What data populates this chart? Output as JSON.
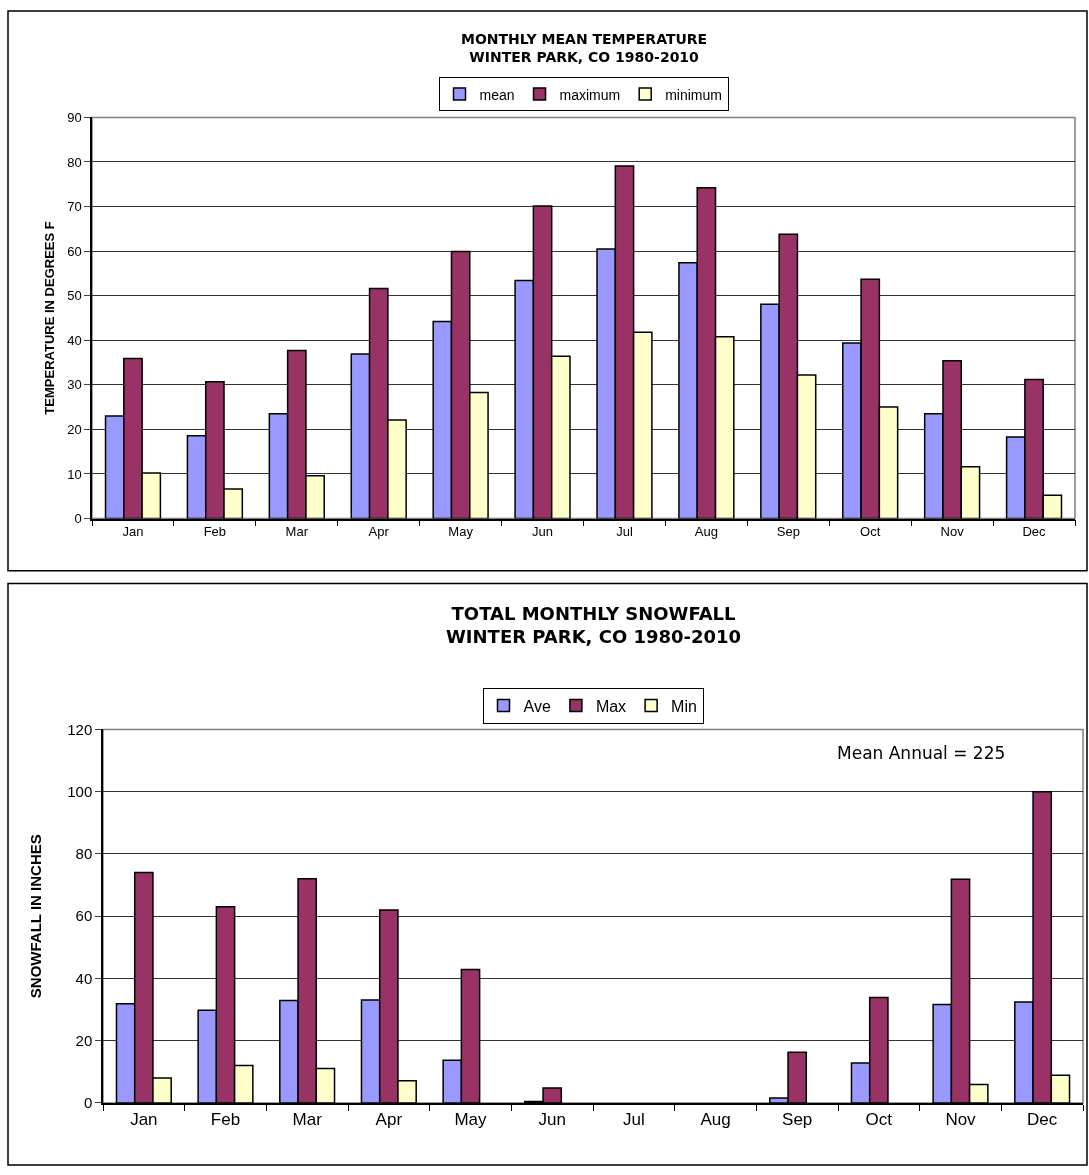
{
  "chart_data": [
    {
      "type": "bar",
      "title": "MONTHLY MEAN TEMPERATURE\nWINTER PARK, CO 1980-2010",
      "ylabel": "TEMPERATURE IN DEGREES F",
      "categories": [
        "Jan",
        "Feb",
        "Mar",
        "Apr",
        "May",
        "Jun",
        "Jul",
        "Aug",
        "Sep",
        "Oct",
        "Nov",
        "Dec"
      ],
      "series": [
        {
          "name": "mean",
          "color": "#9999ff",
          "values": [
            23.0,
            18.6,
            23.5,
            36.9,
            44.2,
            53.4,
            60.5,
            57.4,
            48.1,
            39.4,
            23.5,
            18.3
          ]
        },
        {
          "name": "maximum",
          "color": "#993366",
          "values": [
            35.9,
            30.7,
            37.7,
            51.6,
            59.9,
            70.1,
            79.1,
            74.2,
            63.8,
            53.7,
            35.4,
            31.2
          ]
        },
        {
          "name": "minimum",
          "color": "#ffffcc",
          "values": [
            10.2,
            6.6,
            9.6,
            22.1,
            28.3,
            36.4,
            41.8,
            40.8,
            32.2,
            25.0,
            11.6,
            5.2
          ]
        }
      ],
      "ylim": [
        0,
        90
      ],
      "yticks": [
        0,
        10,
        20,
        30,
        40,
        50,
        60,
        70,
        80,
        90
      ],
      "grid": "y",
      "legend": "top"
    },
    {
      "type": "bar",
      "title": "TOTAL MONTHLY SNOWFALL\nWINTER PARK, CO 1980-2010",
      "ylabel": "SNOWFALL IN INCHES",
      "categories": [
        "Jan",
        "Feb",
        "Mar",
        "Apr",
        "May",
        "Jun",
        "Jul",
        "Aug",
        "Sep",
        "Oct",
        "Nov",
        "Dec"
      ],
      "series": [
        {
          "name": "Ave",
          "color": "#9999ff",
          "values": [
            31.9,
            29.8,
            32.9,
            33.1,
            13.7,
            0.5,
            0,
            0,
            1.6,
            12.8,
            31.6,
            32.4
          ]
        },
        {
          "name": "Max",
          "color": "#993366",
          "values": [
            74,
            63,
            72,
            62,
            42.9,
            4.8,
            0,
            0,
            16.3,
            33.9,
            71.9,
            100
          ]
        },
        {
          "name": "Min",
          "color": "#ffffcc",
          "values": [
            8,
            12,
            11.1,
            7.1,
            0,
            0,
            0,
            0,
            0,
            0,
            5.9,
            8.9
          ]
        }
      ],
      "ylim": [
        0,
        120
      ],
      "yticks": [
        0,
        20,
        40,
        60,
        80,
        100,
        120
      ],
      "grid": "y",
      "legend": "top",
      "annotations": [
        "Mean Annual = 225"
      ]
    }
  ]
}
